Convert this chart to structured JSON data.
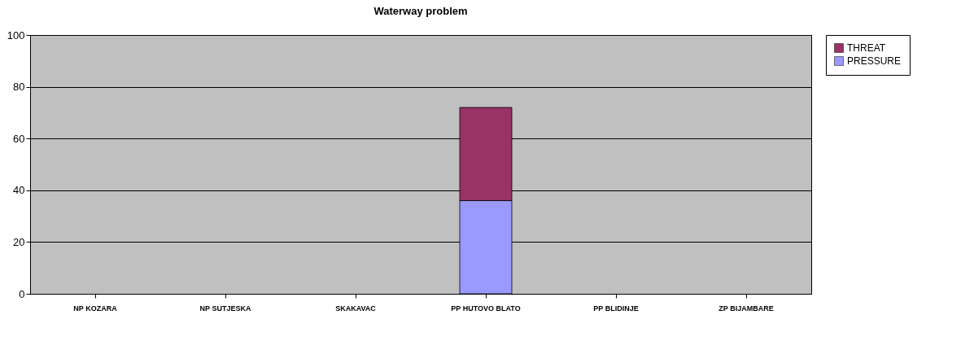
{
  "chart_data": {
    "type": "bar",
    "title": "Waterway problem",
    "stacked": true,
    "categories": [
      "NP KOZARA",
      "NP SUTJESKA",
      "SKAKAVAC",
      "PP HUTOVO BLATO",
      "PP BLIDINJE",
      "ZP BIJAMBARE"
    ],
    "series": [
      {
        "name": "PRESSURE",
        "color": "#9999ff",
        "values": [
          null,
          null,
          null,
          36,
          null,
          null
        ]
      },
      {
        "name": "THREAT",
        "color": "#993366",
        "values": [
          null,
          null,
          null,
          36,
          null,
          null
        ]
      }
    ],
    "ylim": [
      0,
      100
    ],
    "yticks": [
      0,
      20,
      40,
      60,
      80,
      100
    ],
    "grid": "y",
    "legend": "right"
  }
}
